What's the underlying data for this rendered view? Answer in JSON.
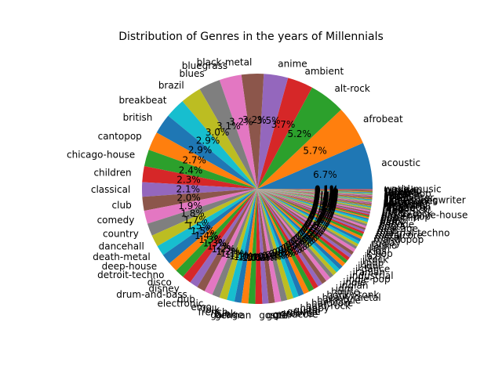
{
  "chart_data": {
    "type": "pie",
    "title": "Distribution of Genres in the years of Millennials",
    "start_angle_deg": 0,
    "direction": "counterclockwise",
    "autopct_format": "{v}%",
    "colors": [
      "#1f77b4",
      "#ff7f0e",
      "#2ca02c",
      "#d62728",
      "#9467bd",
      "#8c564b",
      "#e377c2",
      "#7f7f7f",
      "#bcbd22",
      "#17becf"
    ],
    "labels": [
      "acoustic",
      "afrobeat",
      "alt-rock",
      "ambient",
      "anime",
      "black-metal",
      "bluegrass",
      "blues",
      "brazil",
      "breakbeat",
      "british",
      "cantopop",
      "chicago-house",
      "children",
      "classical",
      "club",
      "comedy",
      "country",
      "dancehall",
      "death-metal",
      "deep-house",
      "detroit-techno",
      "disco",
      "disney",
      "drum-and-bass",
      "dub",
      "electronic",
      "emo",
      "folk",
      "french",
      "funk",
      "garage",
      "german",
      "gospel",
      "goth",
      "grindcore",
      "groove",
      "grunge",
      "guitar",
      "happy",
      "hard-rock",
      "hardcore",
      "hardstyle",
      "heavy-metal",
      "honky-tonk",
      "house",
      "idm",
      "indian",
      "indie",
      "indie-pop",
      "industrial",
      "iranian",
      "j-dance",
      "j-idol",
      "j-pop",
      "j-rock",
      "jazz",
      "k-pop",
      "kids",
      "latin",
      "latino",
      "malay",
      "mandopop",
      "metal",
      "metalcore",
      "minimal-techno",
      "mpb",
      "new-age",
      "opera",
      "pagode",
      "party",
      "piano",
      "pop",
      "pop-film",
      "power-pop",
      "progressive-house",
      "psych-rock",
      "punk",
      "punk-rock",
      "r-n-b",
      "reggae",
      "reggaeton",
      "rock",
      "rock-n-roll",
      "rockabilly",
      "romance",
      "sad",
      "salsa",
      "samba",
      "sertanejo",
      "show-tunes",
      "singer-songwriter",
      "ska",
      "sleep",
      "songwriter",
      "soul",
      "spanish",
      "study",
      "swedish",
      "synth-pop",
      "tango",
      "techno",
      "trance",
      "trip-hop",
      "turkish",
      "world-music"
    ],
    "values": [
      6.7,
      5.7,
      5.2,
      3.7,
      3.5,
      3.2,
      3.2,
      3.1,
      3.0,
      2.9,
      2.9,
      2.7,
      2.4,
      2.3,
      2.1,
      2.0,
      1.9,
      1.8,
      1.7,
      1.5,
      1.5,
      1.4,
      1.3,
      1.3,
      1.2,
      1.2,
      1.2,
      1.1,
      1.1,
      1.1,
      1.0,
      1.0,
      1.0,
      1.0,
      0.9,
      0.9,
      0.9,
      0.9,
      0.9,
      0.8,
      0.8,
      0.8,
      0.8,
      0.7,
      0.7,
      0.7,
      0.7,
      0.6,
      0.6,
      0.6,
      0.6,
      0.6,
      0.5,
      0.5,
      0.5,
      0.5,
      0.5,
      0.4,
      0.4,
      0.4,
      0.4,
      0.4,
      0.4,
      0.3,
      0.3,
      0.3,
      0.3,
      0.3,
      0.3,
      0.3,
      0.2,
      0.2,
      0.2,
      0.2,
      0.2,
      0.2,
      0.2,
      0.2,
      0.2,
      0.1,
      0.1,
      0.1,
      0.1,
      0.1,
      0.1,
      0.1,
      0.1,
      0.1,
      0.1,
      0.1,
      0.1,
      0.1,
      0.1,
      0.1,
      0.1,
      0.1,
      0.1,
      0.1,
      0.1,
      0.1,
      0.1,
      0.1,
      0.1,
      0.1,
      0.1,
      0.1
    ]
  }
}
